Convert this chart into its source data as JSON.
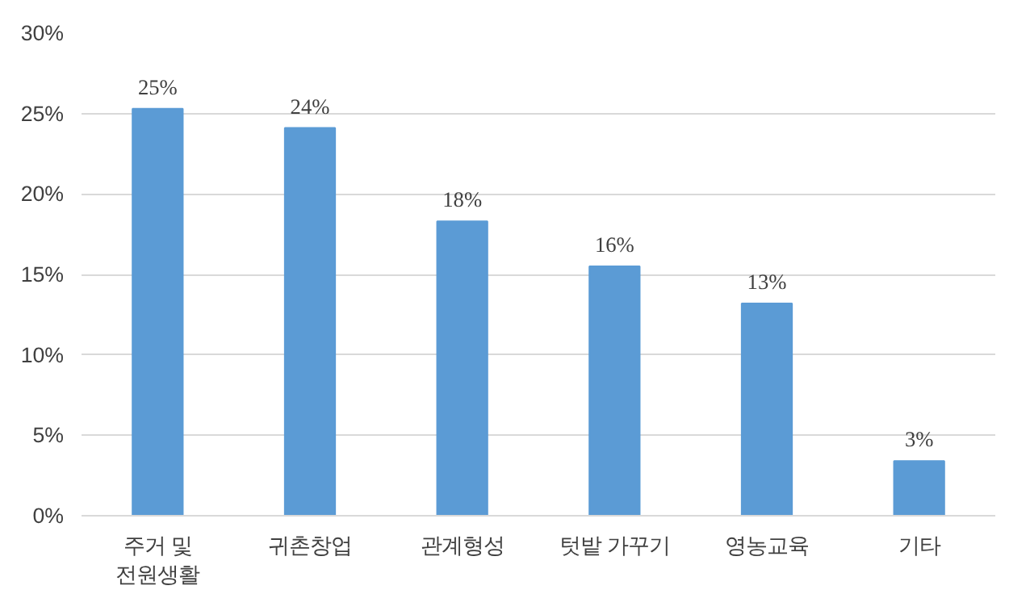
{
  "chart_data": {
    "type": "bar",
    "categories": [
      "주거 및\n전원생활",
      "귀촌창업",
      "관계형성",
      "텃밭 가꾸기",
      "영농교육",
      "기타"
    ],
    "values": [
      25.3,
      24.1,
      18.3,
      15.5,
      13.2,
      3.4
    ],
    "value_labels": [
      "25%",
      "24%",
      "18%",
      "16%",
      "13%",
      "3%"
    ],
    "color": "#5b9bd5",
    "ylim": [
      0,
      30
    ],
    "yticks": [
      {
        "value": 0,
        "label": "0%"
      },
      {
        "value": 5,
        "label": "5%"
      },
      {
        "value": 10,
        "label": "10%"
      },
      {
        "value": 15,
        "label": "15%"
      },
      {
        "value": 20,
        "label": "20%"
      },
      {
        "value": 25,
        "label": "25%"
      },
      {
        "value": 30,
        "label": "30%"
      }
    ],
    "grid": "y"
  }
}
